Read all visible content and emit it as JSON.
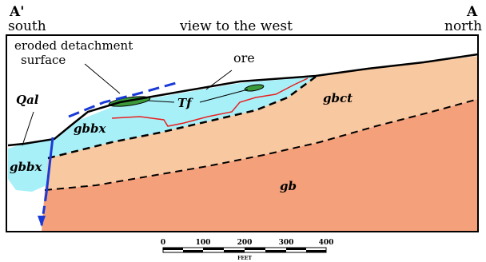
{
  "header": {
    "left_label": "A'",
    "left_direction": "south",
    "center_label": "view to the west",
    "right_label": "A",
    "right_direction": "north"
  },
  "annotations": {
    "eroded_line1": "eroded detachment",
    "eroded_line2": "surface",
    "ore": "ore",
    "tf": "Tf",
    "qal": "Qal"
  },
  "units": {
    "gbbx_upper": "gbbx",
    "gbbx_lower": "gbbx",
    "gbct": "gbct",
    "gb": "gb"
  },
  "scale_bar": {
    "ticks": [
      "0",
      "100",
      "200",
      "300",
      "400"
    ],
    "unit": "FEET"
  },
  "colors": {
    "gb": "#f4a07a",
    "gbct": "#f8c8a0",
    "gbbx": "#a8f0f8",
    "tf": "#3a9a3a",
    "ore_line": "#e82020",
    "fault": "#1a3ad8",
    "contact": "#000000"
  }
}
